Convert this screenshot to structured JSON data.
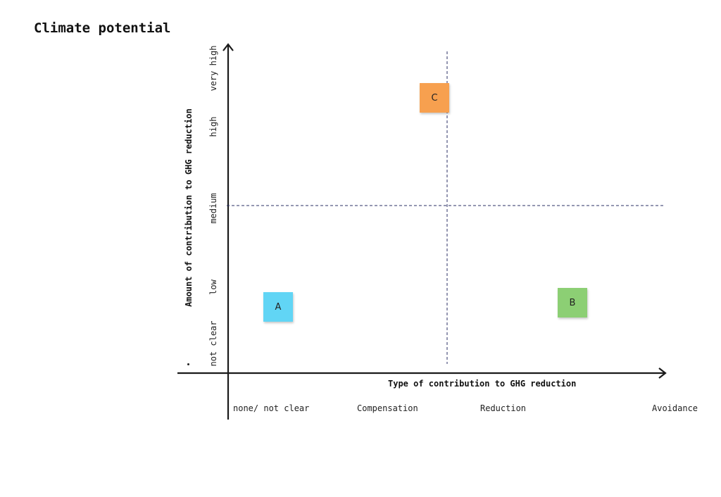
{
  "title": "Climate potential",
  "axes": {
    "x_title": "Type of contribution to GHG reduction",
    "y_title": "Amount of contribution to GHG reduction",
    "x_categories": [
      "none/ not clear",
      "Compensation",
      "Reduction",
      "Avoidance"
    ],
    "y_categories": [
      "not clear",
      "low",
      "medium",
      "high",
      "very high"
    ]
  },
  "notes": [
    {
      "id": "note-a",
      "label": "A",
      "color": "#61d5f5"
    },
    {
      "id": "note-b",
      "label": "B",
      "color": "#8ccf74"
    },
    {
      "id": "note-c",
      "label": "C",
      "color": "#f7a04f"
    }
  ],
  "colors": {
    "axis": "#1a1a1a",
    "divider": "#2b2f66"
  }
}
